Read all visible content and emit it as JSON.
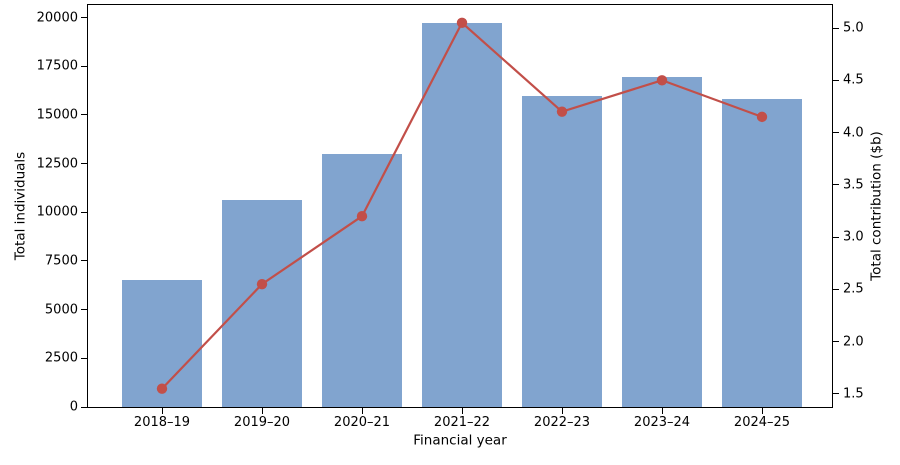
{
  "chart_data": {
    "type": "combo",
    "description": "Dual-axis chart: blue bars on the left axis with an overlaid red line and circular markers on the right axis.",
    "categories": [
      "2018–19",
      "2019–20",
      "2020–21",
      "2021–22",
      "2022–23",
      "2023–24",
      "2024–25"
    ],
    "series": [
      {
        "name": "Total individuals",
        "chart": "bar",
        "axis": "left",
        "color": "#81a4cf",
        "values": [
          6500,
          10650,
          13000,
          19700,
          15950,
          16950,
          15800
        ]
      },
      {
        "name": "Total contribution ($b)",
        "chart": "line",
        "axis": "right",
        "color": "#c24f49",
        "marker": "circle",
        "values": [
          1.55,
          2.55,
          3.2,
          5.05,
          4.2,
          4.5,
          4.15
        ]
      }
    ],
    "title": "",
    "xlabel": "Financial year",
    "ylabel_left": "Total individuals",
    "ylabel_right": "Total contribution ($b)",
    "left_ticks": [
      "0",
      "2500",
      "5000",
      "7500",
      "10000",
      "12500",
      "15000",
      "17500",
      "20000"
    ],
    "right_ticks": [
      "1.5",
      "2.0",
      "2.5",
      "3.0",
      "3.5",
      "4.0",
      "4.5",
      "5.0"
    ],
    "ylim_left": [
      0,
      20650
    ],
    "ylim_right": [
      1.375,
      5.22
    ],
    "grid": false,
    "legend": "none"
  }
}
